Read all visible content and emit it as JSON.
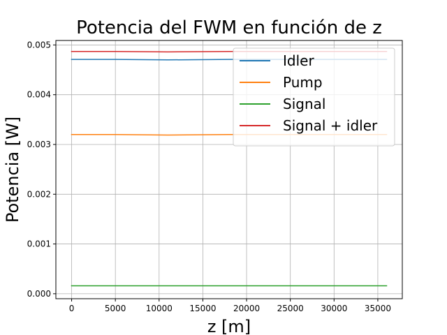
{
  "chart_data": {
    "type": "line",
    "title": "Potencia del FWM en función de z",
    "xlabel": "z [m]",
    "ylabel": "Potencia [W]",
    "xlim": [
      -1800,
      37800
    ],
    "ylim": [
      -0.0001,
      0.00509
    ],
    "xticks": [
      0,
      5000,
      10000,
      15000,
      20000,
      25000,
      30000,
      35000
    ],
    "xtick_labels": [
      "0",
      "5000",
      "10000",
      "15000",
      "20000",
      "25000",
      "30000",
      "35000"
    ],
    "yticks": [
      0.0,
      0.001,
      0.002,
      0.003,
      0.004,
      0.005
    ],
    "ytick_labels": [
      "0.000",
      "0.001",
      "0.002",
      "0.003",
      "0.004",
      "0.005"
    ],
    "grid": true,
    "legend_position": "top-right",
    "x": [
      0,
      5000,
      11000,
      18000,
      25000,
      30000,
      36000
    ],
    "series": [
      {
        "name": "Idler",
        "color": "#1f77b4",
        "values": [
          0.00471,
          0.00471,
          0.0047,
          0.00471,
          0.00471,
          0.00471,
          0.00471
        ]
      },
      {
        "name": "Pump",
        "color": "#ff7f0e",
        "values": [
          0.0032,
          0.0032,
          0.00319,
          0.0032,
          0.0032,
          0.0032,
          0.0032
        ]
      },
      {
        "name": "Signal",
        "color": "#2ca02c",
        "values": [
          0.00016,
          0.00016,
          0.00016,
          0.00016,
          0.00016,
          0.00016,
          0.00016
        ]
      },
      {
        "name": "Signal + idler",
        "color": "#d62728",
        "values": [
          0.00487,
          0.00487,
          0.00486,
          0.00487,
          0.00487,
          0.00487,
          0.00487
        ]
      }
    ]
  }
}
